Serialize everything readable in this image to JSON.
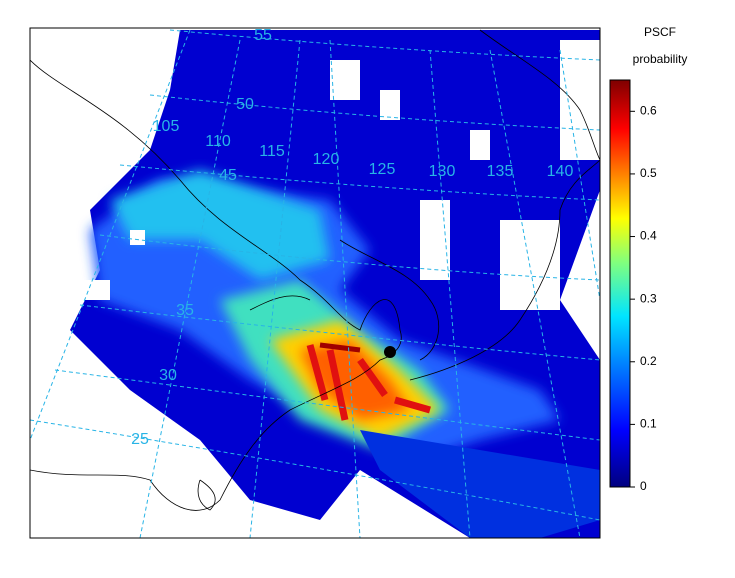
{
  "colorbar": {
    "title": "PSCF",
    "subtitle": "probability",
    "lim": [
      0,
      0.65
    ],
    "ticks": [
      0,
      0.1,
      0.2,
      0.3,
      0.4,
      0.5,
      0.6
    ]
  },
  "grid_labels": {
    "latitude": [
      55,
      50,
      45,
      35,
      30,
      25
    ],
    "longitude": [
      105,
      110,
      115,
      120,
      125,
      130,
      135,
      140
    ]
  }
}
